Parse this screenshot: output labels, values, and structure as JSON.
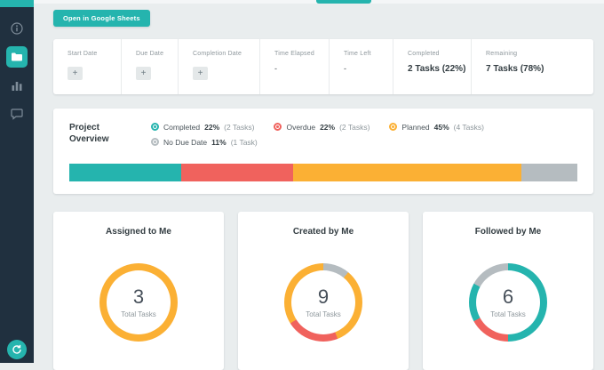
{
  "colors": {
    "accent": "#25b4ae",
    "overdue": "#f0625d",
    "planned": "#fbb034",
    "no_due_date": "#b5bcc0",
    "sidebar_bg": "#20303f",
    "page_bg": "#e9edee"
  },
  "sidebar": {
    "icons": [
      "info-icon",
      "folder-icon",
      "stats-bars-icon",
      "chat-bubble-icon",
      "refresh-icon"
    ],
    "active_item": "folder"
  },
  "toolbar": {
    "open_sheets_label": "Open in Google Sheets"
  },
  "stats": {
    "columns": [
      {
        "label": "Start Date",
        "button": "+"
      },
      {
        "label": "Due Date",
        "button": "+"
      },
      {
        "label": "Completion Date",
        "button": "+"
      },
      {
        "label": "Time Elapsed",
        "value": "-"
      },
      {
        "label": "Time Left",
        "value": "-"
      },
      {
        "label": "Completed",
        "value": "2 Tasks (22%)"
      },
      {
        "label": "Remaining",
        "value": "7 Tasks (78%)"
      }
    ]
  },
  "overview": {
    "title": "Project\nOverview"
  },
  "chart_data": [
    {
      "type": "bar",
      "variant": "stacked-horizontal",
      "title": "Project Overview",
      "segments": [
        {
          "label": "Completed",
          "percent": 22,
          "percent_label": "22%",
          "count_label": "(2 Tasks)",
          "color": "#25b4ae"
        },
        {
          "label": "Overdue",
          "percent": 22,
          "percent_label": "22%",
          "count_label": "(2 Tasks)",
          "color": "#f0625d"
        },
        {
          "label": "Planned",
          "percent": 45,
          "percent_label": "45%",
          "count_label": "(4 Tasks)",
          "color": "#fbb034"
        },
        {
          "label": "No Due Date",
          "percent": 11,
          "percent_label": "11%",
          "count_label": "(1 Task)",
          "color": "#b5bcc0"
        }
      ]
    },
    {
      "type": "pie",
      "variant": "donut",
      "title": "Assigned to Me",
      "center_value": "3",
      "center_label": "Total Tasks",
      "segments": [
        {
          "label": "planned",
          "percent": 100,
          "color": "#fbb034"
        }
      ]
    },
    {
      "type": "pie",
      "variant": "donut",
      "title": "Created by Me",
      "center_value": "9",
      "center_label": "Total Tasks",
      "segments": [
        {
          "label": "no-due-date",
          "percent": 11,
          "color": "#b5bcc0"
        },
        {
          "label": "planned",
          "percent": 33,
          "color": "#fbb034"
        },
        {
          "label": "overdue",
          "percent": 22,
          "color": "#f0625d"
        },
        {
          "label": "planned",
          "percent": 34,
          "color": "#fbb034"
        }
      ]
    },
    {
      "type": "pie",
      "variant": "donut",
      "title": "Followed by Me",
      "center_value": "6",
      "center_label": "Total Tasks",
      "segments": [
        {
          "label": "completed",
          "percent": 50,
          "color": "#25b4ae"
        },
        {
          "label": "overdue",
          "percent": 17,
          "color": "#f0625d"
        },
        {
          "label": "completed",
          "percent": 16,
          "color": "#25b4ae"
        },
        {
          "label": "no-due-date",
          "percent": 17,
          "color": "#b5bcc0"
        }
      ]
    }
  ]
}
